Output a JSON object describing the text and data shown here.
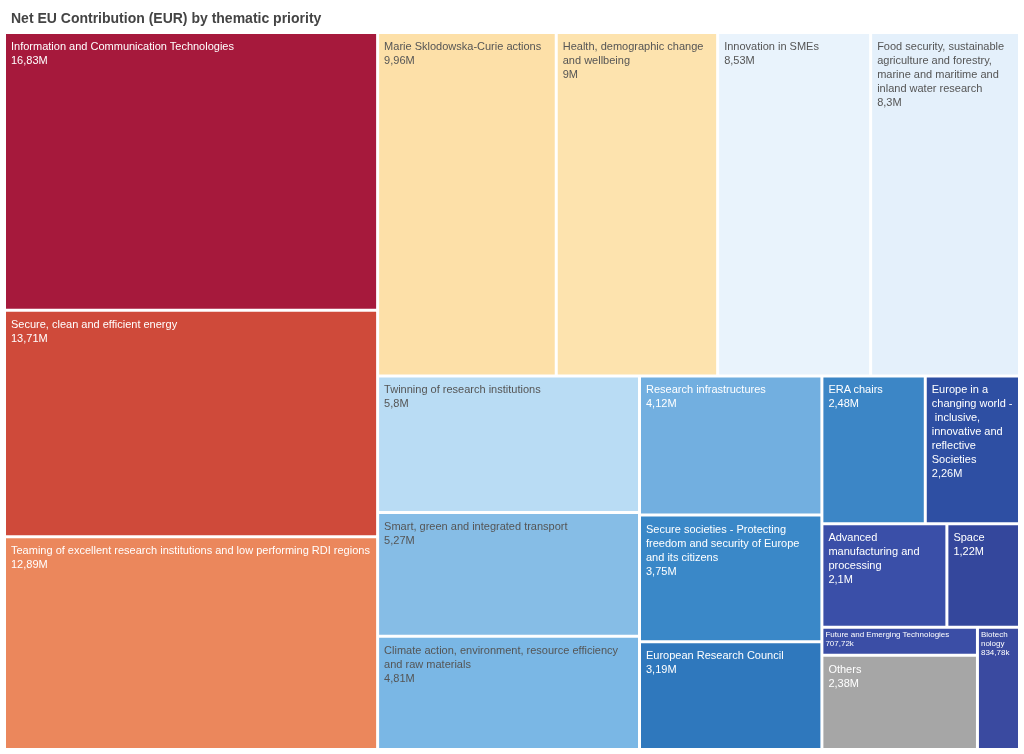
{
  "chart_data": {
    "type": "other",
    "title": "Net EU Contribution (EUR) by thematic priority",
    "categories": [
      "Information and Communication Technologies",
      "Secure, clean and efficient energy",
      "Teaming of excellent research institutions and low performing RDI regions",
      "Marie Sklodowska-Curie actions",
      "Health, demographic change and wellbeing",
      "Innovation in SMEs",
      "Food security, sustainable agriculture and forestry, marine and maritime and inland water research",
      "Twinning of research institutions",
      "Smart, green and integrated transport",
      "Climate action, environment, resource efficiency and raw materials",
      "Research infrastructures",
      "Secure societies - Protecting freedom and security of Europe and its citizens",
      "European Research Council",
      "ERA chairs",
      "Europe in a changing world - inclusive, innovative and reflective Societies",
      "Advanced manufacturing and processing",
      "Space",
      "Future and Emerging Technologies",
      "Others",
      "Biotechnology"
    ],
    "values": [
      16830000,
      13710000,
      12890000,
      9960000,
      9000000,
      8530000,
      8300000,
      5800000,
      5270000,
      4810000,
      4120000,
      3750000,
      3190000,
      2480000,
      2260000,
      2100000,
      1220000,
      707720,
      2380000,
      834780
    ],
    "value_labels": [
      "16,83M",
      "13,71M",
      "12,89M",
      "9,96M",
      "9M",
      "8,53M",
      "8,3M",
      "5,8M",
      "5,27M",
      "4,81M",
      "4,12M",
      "3,75M",
      "3,19M",
      "2,48M",
      "2,26M",
      "2,1M",
      "1,22M",
      "707,72k",
      "2,38M",
      "834,78k"
    ],
    "colors": [
      "#a6193c",
      "#cf4a3a",
      "#eb875c",
      "#fde0a8",
      "#fde3ae",
      "#e9f3fc",
      "#e4f0fb",
      "#b9dcf4",
      "#86bde6",
      "#7ab7e5",
      "#72afe0",
      "#3a88c8",
      "#2f78bd",
      "#3c86c6",
      "#2e4fa3",
      "#3a4fa8",
      "#34479c",
      "#3b4ea6",
      "#a6a6a6",
      "#3a4aa0"
    ]
  }
}
